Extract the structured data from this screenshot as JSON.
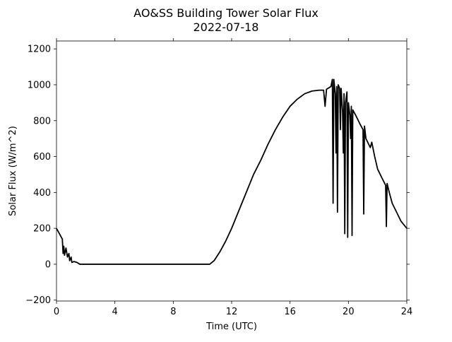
{
  "chart_data": {
    "type": "line",
    "title": "AO&SS Building Tower Solar Flux",
    "subtitle": "2022-07-18",
    "x_label": "Time (UTC)",
    "y_label": "Solar Flux (W/m^2)",
    "color": "#000000",
    "xlim": [
      0,
      24
    ],
    "xticks": [
      0,
      4,
      8,
      12,
      16,
      20,
      24
    ],
    "ylim": [
      -205,
      1244
    ],
    "yticks": [
      {
        "value": -200,
        "label": "−200"
      },
      0,
      200,
      400,
      600,
      800,
      1000,
      1200
    ],
    "x": [
      0,
      0.2,
      0.4,
      0.45,
      0.5,
      0.55,
      0.65,
      0.75,
      0.85,
      0.9,
      1.0,
      1.05,
      1.2,
      1.4,
      1.6,
      10.5,
      10.8,
      11.2,
      11.6,
      12,
      12.5,
      13,
      13.5,
      14,
      14.5,
      15,
      15.5,
      16,
      16.5,
      17,
      17.5,
      18,
      18.3,
      18.4,
      18.5,
      18.8,
      18.9,
      18.95,
      19.0,
      19.1,
      19.15,
      19.2,
      19.25,
      19.3,
      19.4,
      19.45,
      19.5,
      19.6,
      19.65,
      19.7,
      19.75,
      19.8,
      19.9,
      19.95,
      20.0,
      20.1,
      20.15,
      20.2,
      20.25,
      20.3,
      20.5,
      20.8,
      21.0,
      21.05,
      21.1,
      21.2,
      21.5,
      21.6,
      21.8,
      22.0,
      22.3,
      22.55,
      22.6,
      22.65,
      22.8,
      23.0,
      23.3,
      23.6,
      24
    ],
    "values": [
      200,
      170,
      140,
      60,
      100,
      50,
      90,
      40,
      60,
      20,
      40,
      10,
      15,
      10,
      0,
      0,
      20,
      70,
      130,
      200,
      300,
      400,
      500,
      580,
      670,
      750,
      820,
      880,
      920,
      950,
      965,
      970,
      970,
      880,
      975,
      990,
      1030,
      340,
      1030,
      950,
      620,
      990,
      290,
      1000,
      980,
      750,
      980,
      850,
      620,
      950,
      170,
      900,
      960,
      150,
      900,
      830,
      700,
      880,
      160,
      860,
      830,
      780,
      750,
      280,
      770,
      700,
      650,
      680,
      600,
      530,
      480,
      440,
      210,
      450,
      400,
      340,
      290,
      240,
      200
    ]
  }
}
